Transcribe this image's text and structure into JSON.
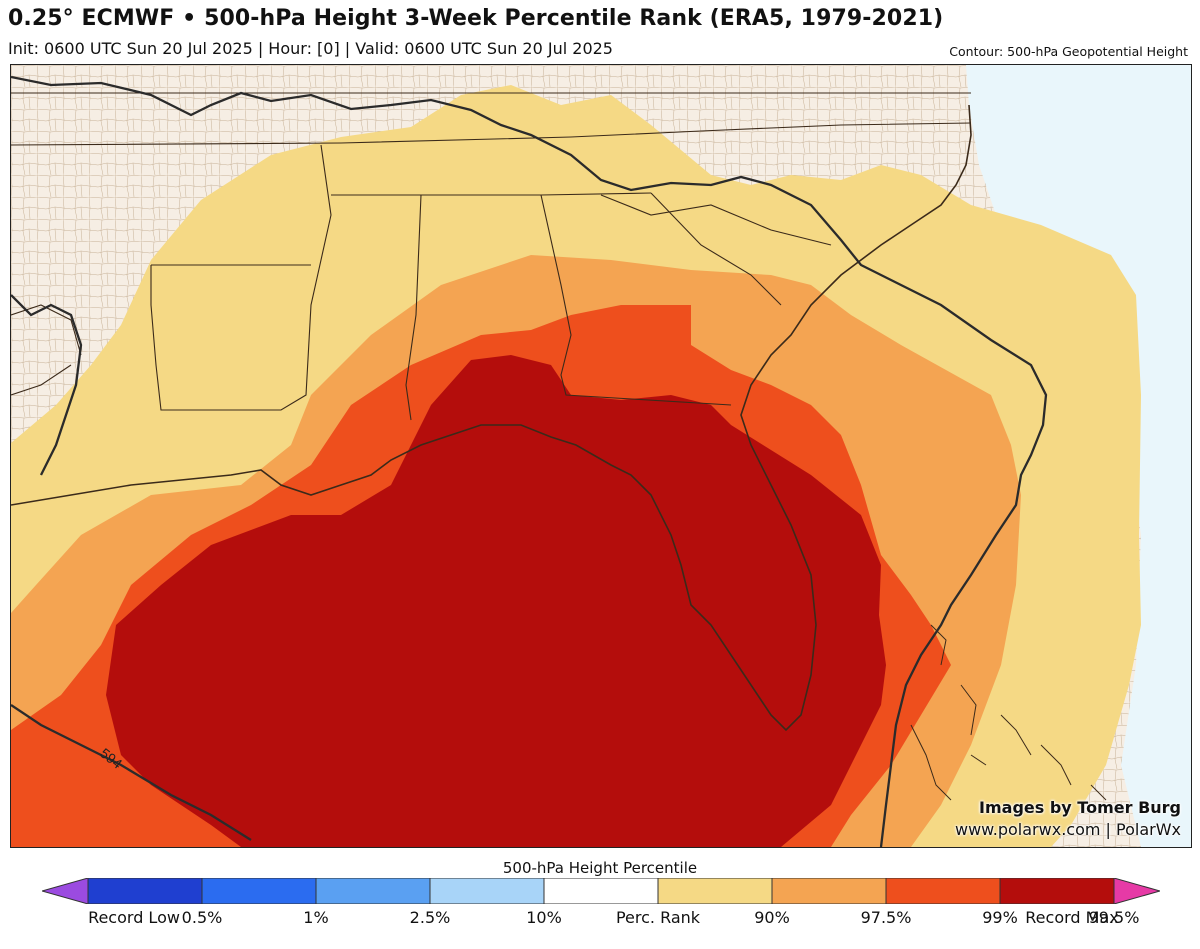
{
  "header": {
    "title": "0.25° ECMWF • 500-hPa Height 3-Week Percentile Rank (ERA5, 1979-2021)",
    "subtitle": "Init: 0600 UTC Sun 20 Jul 2025 | Hour: [0] | Valid: 0600 UTC Sun 20 Jul 2025",
    "contour_label": "Contour: 500-hPa Geopotential Height"
  },
  "map": {
    "contour_value_label": "594",
    "colors": {
      "land": "#f6eee4",
      "ocean": "#e9f6fb",
      "p90": "#f5d985",
      "p97_5": "#f4a452",
      "p99": "#ee4f1d",
      "p99_5": "#b40d0c",
      "county_lines": "#b59a7a",
      "state_lines": "#3b2a1a",
      "contour": "#2b2b2b"
    }
  },
  "credits": {
    "line1": "Images by Tomer Burg",
    "line2": "www.polarwx.com | PolarWx"
  },
  "colorbar": {
    "title": "500-hPa Height Percentile",
    "segments": [
      {
        "color": "#9b4be0"
      },
      {
        "color": "#1f3fd0"
      },
      {
        "color": "#2b6cf0"
      },
      {
        "color": "#5aa0f2"
      },
      {
        "color": "#a8d4f8"
      },
      {
        "color": "#ffffff"
      },
      {
        "color": "#f5d985"
      },
      {
        "color": "#f4a452"
      },
      {
        "color": "#ee4f1d"
      },
      {
        "color": "#b40d0c"
      },
      {
        "color": "#e63aa6"
      }
    ],
    "labels": [
      "Record Low",
      "0.5%",
      "1%",
      "2.5%",
      "10%",
      "Perc. Rank",
      "90%",
      "97.5%",
      "99%",
      "99.5%",
      "Record Max"
    ]
  }
}
